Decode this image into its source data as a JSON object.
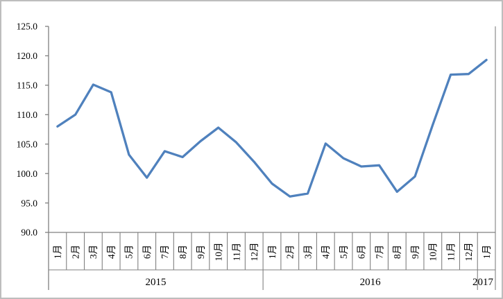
{
  "chart_data": {
    "type": "line",
    "title": "",
    "legend": "none",
    "grid": false,
    "line_color": "#4F81BD",
    "axis_color": "#808080",
    "ylim": [
      90,
      125
    ],
    "yticks": [
      125.0,
      120.0,
      115.0,
      110.0,
      105.0,
      100.0,
      95.0,
      90.0
    ],
    "ytick_labels": [
      "125.0",
      "120.0",
      "115.0",
      "110.0",
      "105.0",
      "100.0",
      "95.0",
      "90.0"
    ],
    "categories": [
      "1月",
      "2月",
      "3月",
      "4月",
      "5月",
      "6月",
      "7月",
      "8月",
      "9月",
      "10月",
      "11月",
      "12月",
      "1月",
      "2月",
      "3月",
      "4月",
      "5月",
      "6月",
      "7月",
      "8月",
      "9月",
      "10月",
      "11月",
      "12月",
      "1月"
    ],
    "year_groups": [
      {
        "label": "2015",
        "months": 12
      },
      {
        "label": "2016",
        "months": 12
      },
      {
        "label": "2017",
        "months": 1
      }
    ],
    "values": [
      108.0,
      110.0,
      115.1,
      113.8,
      103.2,
      99.3,
      103.8,
      102.8,
      105.5,
      107.8,
      105.3,
      102.0,
      98.3,
      96.1,
      96.6,
      105.1,
      102.6,
      101.2,
      101.4,
      96.9,
      99.5,
      108.3,
      116.8,
      116.9,
      119.3
    ]
  }
}
